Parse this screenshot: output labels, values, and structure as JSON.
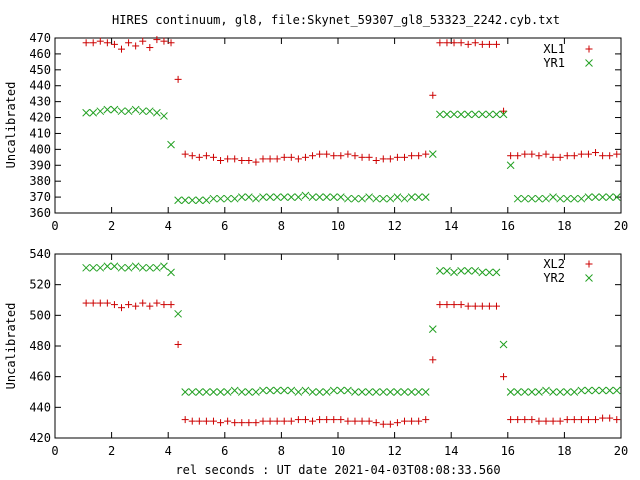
{
  "title": "HIRES continuum, gl8, file:Skynet_59307_gl8_53323_2242.cyb.txt",
  "xlabel": "rel seconds : UT date 2021-04-03T08:08:33.560",
  "colors": {
    "red": "#cc0000",
    "green": "#22a022",
    "frame": "#000000"
  },
  "chart_data": [
    {
      "type": "scatter",
      "xlabel": "",
      "ylabel": "Uncalibrated",
      "xlim": [
        0,
        20
      ],
      "ylim": [
        360,
        470
      ],
      "xticks": [
        "0",
        "2",
        "4",
        "6",
        "8",
        "10",
        "12",
        "14",
        "16",
        "18",
        "20"
      ],
      "yticks": [
        "360",
        "370",
        "380",
        "390",
        "400",
        "410",
        "420",
        "430",
        "440",
        "450",
        "460",
        "470"
      ],
      "grid": false,
      "legend": "top-right",
      "series": [
        {
          "name": "XL1",
          "marker": "plus",
          "color": "#cc0000",
          "x": [
            1.1,
            1.35,
            1.6,
            1.85,
            2.1,
            2.35,
            2.6,
            2.85,
            3.1,
            3.35,
            3.6,
            3.85,
            4.1,
            4.35,
            4.6,
            4.85,
            5.1,
            5.35,
            5.6,
            5.85,
            6.1,
            6.35,
            6.6,
            6.85,
            7.1,
            7.35,
            7.6,
            7.85,
            8.1,
            8.35,
            8.6,
            8.85,
            9.1,
            9.35,
            9.6,
            9.85,
            10.1,
            10.35,
            10.6,
            10.85,
            11.1,
            11.35,
            11.6,
            11.85,
            12.1,
            12.35,
            12.6,
            12.85,
            13.1,
            13.35,
            13.6,
            13.85,
            14.1,
            14.35,
            14.6,
            14.85,
            15.1,
            15.35,
            15.6,
            15.85,
            16.1,
            16.35,
            16.6,
            16.85,
            17.1,
            17.35,
            17.6,
            17.85,
            18.1,
            18.35,
            18.6,
            18.85,
            19.1,
            19.35,
            19.6,
            19.85
          ],
          "y": [
            467,
            467,
            468,
            467,
            466,
            463,
            467,
            465,
            468,
            464,
            469,
            468,
            467,
            444,
            397,
            396,
            395,
            396,
            395,
            393,
            394,
            394,
            393,
            393,
            392,
            394,
            394,
            394,
            395,
            395,
            394,
            395,
            396,
            397,
            397,
            396,
            396,
            397,
            396,
            395,
            395,
            393,
            394,
            394,
            395,
            395,
            396,
            396,
            397,
            434,
            467,
            467,
            467,
            467,
            466,
            467,
            466,
            466,
            466,
            424,
            396,
            396,
            397,
            397,
            396,
            397,
            395,
            395,
            396,
            396,
            397,
            397,
            398,
            396,
            396,
            397
          ]
        },
        {
          "name": "YR1",
          "marker": "cross",
          "color": "#22a022",
          "x": [
            1.1,
            1.35,
            1.6,
            1.85,
            2.1,
            2.35,
            2.6,
            2.85,
            3.1,
            3.35,
            3.6,
            3.85,
            4.1,
            4.35,
            4.6,
            4.85,
            5.1,
            5.35,
            5.6,
            5.85,
            6.1,
            6.35,
            6.6,
            6.85,
            7.1,
            7.35,
            7.6,
            7.85,
            8.1,
            8.35,
            8.6,
            8.85,
            9.1,
            9.35,
            9.6,
            9.85,
            10.1,
            10.35,
            10.6,
            10.85,
            11.1,
            11.35,
            11.6,
            11.85,
            12.1,
            12.35,
            12.6,
            12.85,
            13.1,
            13.35,
            13.6,
            13.85,
            14.1,
            14.35,
            14.6,
            14.85,
            15.1,
            15.35,
            15.6,
            15.85,
            16.1,
            16.35,
            16.6,
            16.85,
            17.1,
            17.35,
            17.6,
            17.85,
            18.1,
            18.35,
            18.6,
            18.85,
            19.1,
            19.35,
            19.6,
            19.85
          ],
          "y": [
            423,
            423,
            424,
            425,
            425,
            424,
            424,
            425,
            424,
            424,
            423,
            421,
            403,
            368,
            368,
            368,
            368,
            368,
            369,
            369,
            369,
            369,
            370,
            370,
            369,
            370,
            370,
            370,
            370,
            370,
            370,
            371,
            370,
            370,
            370,
            370,
            370,
            369,
            369,
            369,
            370,
            369,
            369,
            369,
            370,
            369,
            370,
            370,
            370,
            397,
            422,
            422,
            422,
            422,
            422,
            422,
            422,
            422,
            422,
            422,
            390,
            369,
            369,
            369,
            369,
            369,
            370,
            369,
            369,
            369,
            369,
            370,
            370,
            370,
            370,
            370
          ],
          "x_fix": null
        }
      ]
    },
    {
      "type": "scatter",
      "xlabel": "rel seconds : UT date 2021-04-03T08:08:33.560",
      "ylabel": "Uncalibrated",
      "xlim": [
        0,
        20
      ],
      "ylim": [
        420,
        540
      ],
      "xticks": [
        "0",
        "2",
        "4",
        "6",
        "8",
        "10",
        "12",
        "14",
        "16",
        "18",
        "20"
      ],
      "yticks": [
        "420",
        "440",
        "460",
        "480",
        "500",
        "520",
        "540"
      ],
      "grid": false,
      "legend": "top-right",
      "series": [
        {
          "name": "XL2",
          "marker": "plus",
          "color": "#cc0000",
          "x": [
            1.1,
            1.35,
            1.6,
            1.85,
            2.1,
            2.35,
            2.6,
            2.85,
            3.1,
            3.35,
            3.6,
            3.85,
            4.1,
            4.35,
            4.6,
            4.85,
            5.1,
            5.35,
            5.6,
            5.85,
            6.1,
            6.35,
            6.6,
            6.85,
            7.1,
            7.35,
            7.6,
            7.85,
            8.1,
            8.35,
            8.6,
            8.85,
            9.1,
            9.35,
            9.6,
            9.85,
            10.1,
            10.35,
            10.6,
            10.85,
            11.1,
            11.35,
            11.6,
            11.85,
            12.1,
            12.35,
            12.6,
            12.85,
            13.1,
            13.35,
            13.6,
            13.85,
            14.1,
            14.35,
            14.6,
            14.85,
            15.1,
            15.35,
            15.6,
            15.85,
            16.1,
            16.35,
            16.6,
            16.85,
            17.1,
            17.35,
            17.6,
            17.85,
            18.1,
            18.35,
            18.6,
            18.85,
            19.1,
            19.35,
            19.6,
            19.85
          ],
          "y": [
            508,
            508,
            508,
            508,
            507,
            505,
            507,
            506,
            508,
            506,
            508,
            507,
            507,
            481,
            432,
            431,
            431,
            431,
            431,
            430,
            431,
            430,
            430,
            430,
            430,
            431,
            431,
            431,
            431,
            431,
            432,
            432,
            431,
            432,
            432,
            432,
            432,
            431,
            431,
            431,
            431,
            430,
            429,
            429,
            430,
            431,
            431,
            431,
            432,
            471,
            507,
            507,
            507,
            507,
            506,
            506,
            506,
            506,
            506,
            460,
            432,
            432,
            432,
            432,
            431,
            431,
            431,
            431,
            432,
            432,
            432,
            432,
            432,
            433,
            433,
            432
          ],
          "x_fix": null
        },
        {
          "name": "YR2",
          "marker": "cross",
          "color": "#22a022",
          "x": [
            1.1,
            1.35,
            1.6,
            1.85,
            2.1,
            2.35,
            2.6,
            2.85,
            3.1,
            3.35,
            3.6,
            3.85,
            4.1,
            4.35,
            4.6,
            4.85,
            5.1,
            5.35,
            5.6,
            5.85,
            6.1,
            6.35,
            6.6,
            6.85,
            7.1,
            7.35,
            7.6,
            7.85,
            8.1,
            8.35,
            8.6,
            8.85,
            9.1,
            9.35,
            9.6,
            9.85,
            10.1,
            10.35,
            10.6,
            10.85,
            11.1,
            11.35,
            11.6,
            11.85,
            12.1,
            12.35,
            12.6,
            12.85,
            13.1,
            13.35,
            13.6,
            13.85,
            14.1,
            14.35,
            14.6,
            14.85,
            15.1,
            15.35,
            15.6,
            15.85,
            16.1,
            16.35,
            16.6,
            16.85,
            17.1,
            17.35,
            17.6,
            17.85,
            18.1,
            18.35,
            18.6,
            18.85,
            19.1,
            19.35,
            19.6,
            19.85
          ],
          "y": [
            531,
            531,
            531,
            532,
            532,
            531,
            531,
            532,
            531,
            531,
            531,
            532,
            528,
            501,
            450,
            450,
            450,
            450,
            450,
            450,
            450,
            451,
            450,
            450,
            450,
            451,
            451,
            451,
            451,
            451,
            450,
            451,
            450,
            450,
            450,
            451,
            451,
            451,
            450,
            450,
            450,
            450,
            450,
            450,
            450,
            450,
            450,
            450,
            450,
            491,
            529,
            529,
            528,
            529,
            529,
            529,
            528,
            528,
            528,
            481,
            450,
            450,
            450,
            450,
            450,
            451,
            450,
            450,
            450,
            450,
            451,
            451,
            451,
            451,
            451,
            451
          ]
        }
      ]
    }
  ]
}
